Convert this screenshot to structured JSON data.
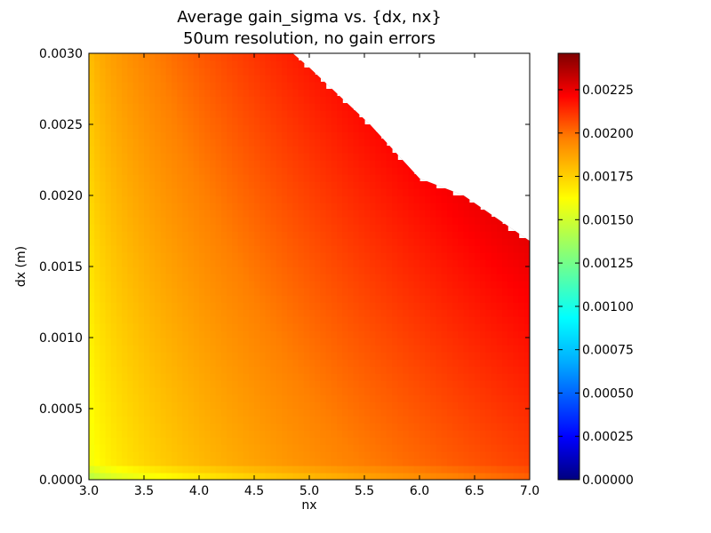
{
  "chart_data": {
    "type": "heatmap",
    "title": "Average gain_sigma vs. {dx, nx}",
    "subtitle": "50um resolution, no gain errors",
    "xlabel": "nx",
    "ylabel": "dx (m)",
    "xlim": [
      3.0,
      7.0
    ],
    "ylim": [
      0.0,
      0.003
    ],
    "x_ticks": [
      "3.0",
      "3.5",
      "4.0",
      "4.5",
      "5.0",
      "5.5",
      "6.0",
      "6.5",
      "7.0"
    ],
    "y_ticks": [
      "0.0000",
      "0.0005",
      "0.0010",
      "0.0015",
      "0.0020",
      "0.0025",
      "0.0030"
    ],
    "colorbar_ticks": [
      "0.00000",
      "0.00025",
      "0.00050",
      "0.00075",
      "0.00100",
      "0.00125",
      "0.00150",
      "0.00175",
      "0.00200",
      "0.00225"
    ],
    "colorbar_range": [
      0.0,
      0.00246
    ],
    "colormap": "jet",
    "grid": false,
    "colorbar_position": "right",
    "contour_levels": [
      0.0015,
      0.0016,
      0.0017,
      0.0018,
      0.0019,
      0.002,
      0.00205,
      0.0021,
      0.00215,
      0.0022,
      0.00225,
      0.0023,
      0.00235,
      0.0024,
      0.00245
    ],
    "data_boundary": [
      [
        3.0,
        0.003
      ],
      [
        4.85,
        0.003
      ],
      [
        5.0,
        0.0029
      ],
      [
        5.55,
        0.0025
      ],
      [
        6.0,
        0.00212
      ],
      [
        6.4,
        0.002
      ],
      [
        7.0,
        0.00168
      ],
      [
        7.0,
        0.0
      ],
      [
        3.0,
        0.0
      ]
    ],
    "colors": {
      "background": "#ffffff",
      "axes_edge": "#000000",
      "empty_region": "#ffffff"
    }
  }
}
